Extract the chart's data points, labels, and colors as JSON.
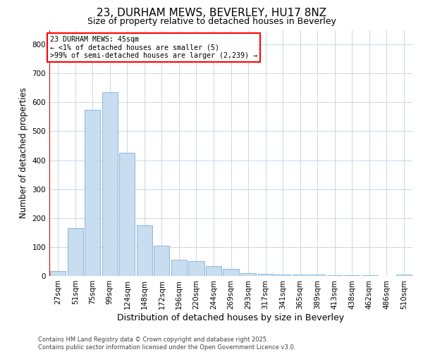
{
  "title": "23, DURHAM MEWS, BEVERLEY, HU17 8NZ",
  "subtitle": "Size of property relative to detached houses in Beverley",
  "xlabel": "Distribution of detached houses by size in Beverley",
  "ylabel": "Number of detached properties",
  "bar_color": "#c9ddf0",
  "bar_edge_color": "#7bafd4",
  "bar_categories": [
    "27sqm",
    "51sqm",
    "75sqm",
    "99sqm",
    "124sqm",
    "148sqm",
    "172sqm",
    "196sqm",
    "220sqm",
    "244sqm",
    "269sqm",
    "293sqm",
    "317sqm",
    "341sqm",
    "365sqm",
    "389sqm",
    "413sqm",
    "438sqm",
    "462sqm",
    "486sqm",
    "510sqm"
  ],
  "bar_values": [
    17,
    165,
    575,
    635,
    425,
    175,
    105,
    55,
    50,
    35,
    25,
    10,
    8,
    5,
    4,
    4,
    3,
    2,
    2,
    1,
    5
  ],
  "ylim": [
    0,
    850
  ],
  "yticks": [
    0,
    100,
    200,
    300,
    400,
    500,
    600,
    700,
    800
  ],
  "red_line_color": "#cc0000",
  "annotation_box_text": "23 DURHAM MEWS: 45sqm\n← <1% of detached houses are smaller (5)\n>99% of semi-detached houses are larger (2,239) →",
  "background_color": "#ffffff",
  "grid_color": "#c8d8e8",
  "footer_text": "Contains HM Land Registry data © Crown copyright and database right 2025.\nContains public sector information licensed under the Open Government Licence v3.0.",
  "title_fontsize": 11,
  "subtitle_fontsize": 9,
  "xlabel_fontsize": 9,
  "ylabel_fontsize": 8.5,
  "tick_fontsize": 7.5,
  "footer_fontsize": 6
}
